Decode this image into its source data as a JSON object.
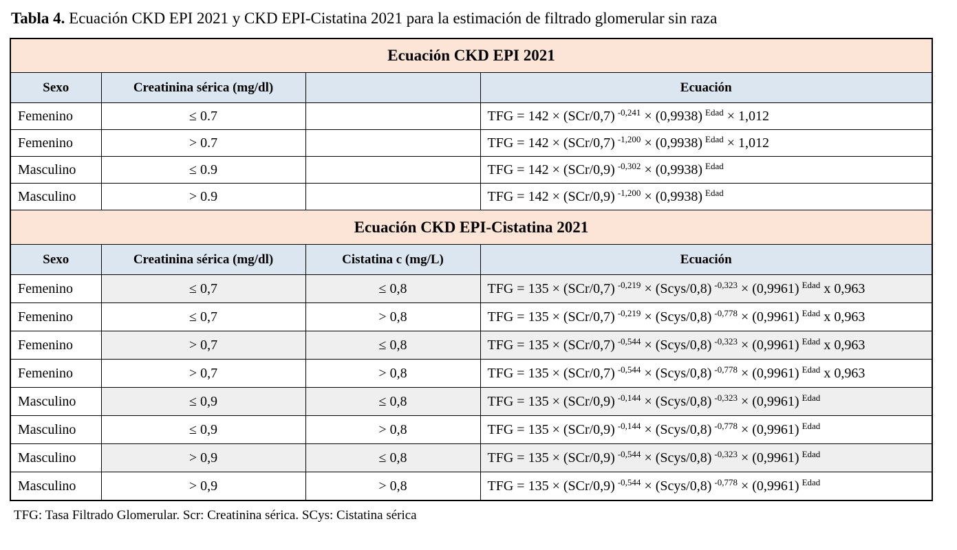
{
  "page": {
    "title_label": "Tabla 4.",
    "title_text": " Ecuación CKD EPI 2021 y CKD EPI-Cistatina 2021 para la estimación de filtrado glomerular sin raza",
    "footnote": "TFG: Tasa Filtrado Glomerular. Scr: Creatinina sérica. SCys: Cistatina sérica"
  },
  "colors": {
    "section_header_bg": "#FCE4D6",
    "column_header_bg": "#DCE6F1",
    "shaded_row_bg": "#EFEFEF",
    "border": "#000000"
  },
  "section1": {
    "header": "Ecuación CKD EPI 2021",
    "columns": [
      "Sexo",
      "Creatinina sérica (mg/dl)",
      "",
      "Ecuación"
    ],
    "rows": [
      {
        "sexo": "Femenino",
        "creatinina": "≤ 0.7",
        "cistatina": "",
        "eq": [
          {
            "t": "TFG = 142 × (SCr/0,7)"
          },
          {
            "s": "-0,241"
          },
          {
            "t": " × (0,9938)"
          },
          {
            "s": "Edad"
          },
          {
            "t": " × 1,012"
          }
        ]
      },
      {
        "sexo": "Femenino",
        "creatinina": "> 0.7",
        "cistatina": "",
        "eq": [
          {
            "t": "TFG = 142 × (SCr/0,7)"
          },
          {
            "s": "-1,200"
          },
          {
            "t": " × (0,9938)"
          },
          {
            "s": "Edad"
          },
          {
            "t": " × 1,012"
          }
        ]
      },
      {
        "sexo": "Masculino",
        "creatinina": "≤ 0.9",
        "cistatina": "",
        "eq": [
          {
            "t": "TFG = 142 × (SCr/0,9)"
          },
          {
            "s": "-0,302"
          },
          {
            "t": " × (0,9938)"
          },
          {
            "s": "Edad"
          }
        ]
      },
      {
        "sexo": "Masculino",
        "creatinina": "> 0.9",
        "cistatina": "",
        "eq": [
          {
            "t": "TFG = 142 × (SCr/0,9)"
          },
          {
            "s": "-1,200"
          },
          {
            "t": " × (0,9938)"
          },
          {
            "s": "Edad"
          }
        ]
      }
    ]
  },
  "section2": {
    "header": "Ecuación CKD EPI-Cistatina 2021",
    "columns": [
      "Sexo",
      "Creatinina sérica (mg/dl)",
      "Cistatina c (mg/L)",
      "Ecuación"
    ],
    "rows": [
      {
        "sexo": "Femenino",
        "creatinina": "≤ 0,7",
        "cistatina": "≤ 0,8",
        "eq": [
          {
            "t": "TFG = 135 × (SCr/0,7)"
          },
          {
            "s": "-0,219"
          },
          {
            "t": " × (Scys/0,8)"
          },
          {
            "s": "-0,323"
          },
          {
            "t": " × (0,9961)"
          },
          {
            "s": "Edad"
          },
          {
            "t": " x 0,963"
          }
        ]
      },
      {
        "sexo": "Femenino",
        "creatinina": "≤ 0,7",
        "cistatina": "> 0,8",
        "eq": [
          {
            "t": "TFG = 135 × (SCr/0,7)"
          },
          {
            "s": "-0,219"
          },
          {
            "t": " × (Scys/0,8)"
          },
          {
            "s": "-0,778"
          },
          {
            "t": " × (0,9961)"
          },
          {
            "s": "Edad"
          },
          {
            "t": " x 0,963"
          }
        ]
      },
      {
        "sexo": "Femenino",
        "creatinina": "> 0,7",
        "cistatina": "≤ 0,8",
        "eq": [
          {
            "t": "TFG = 135 × (SCr/0,7)"
          },
          {
            "s": "-0,544"
          },
          {
            "t": " × (Scys/0,8)"
          },
          {
            "s": "-0,323"
          },
          {
            "t": " × (0,9961)"
          },
          {
            "s": "Edad"
          },
          {
            "t": " x 0,963"
          }
        ]
      },
      {
        "sexo": "Femenino",
        "creatinina": "> 0,7",
        "cistatina": "> 0,8",
        "eq": [
          {
            "t": "TFG = 135 × (SCr/0,7)"
          },
          {
            "s": "-0,544"
          },
          {
            "t": " × (Scys/0,8)"
          },
          {
            "s": "-0,778"
          },
          {
            "t": " × (0,9961)"
          },
          {
            "s": "Edad"
          },
          {
            "t": " x 0,963"
          }
        ]
      },
      {
        "sexo": "Masculino",
        "creatinina": "≤ 0,9",
        "cistatina": "≤ 0,8",
        "eq": [
          {
            "t": "TFG = 135 × (SCr/0,9)"
          },
          {
            "s": "-0,144"
          },
          {
            "t": " × (Scys/0,8)"
          },
          {
            "s": "-0,323"
          },
          {
            "t": " × (0,9961)"
          },
          {
            "s": "Edad"
          }
        ]
      },
      {
        "sexo": "Masculino",
        "creatinina": "≤ 0,9",
        "cistatina": "> 0,8",
        "eq": [
          {
            "t": "TFG = 135 × (SCr/0,9)"
          },
          {
            "s": "-0,144"
          },
          {
            "t": " × (Scys/0,8)"
          },
          {
            "s": "-0,778"
          },
          {
            "t": " × (0,9961)"
          },
          {
            "s": "Edad"
          }
        ]
      },
      {
        "sexo": "Masculino",
        "creatinina": "> 0,9",
        "cistatina": "≤ 0,8",
        "eq": [
          {
            "t": "TFG = 135 × (SCr/0,9)"
          },
          {
            "s": "-0,544"
          },
          {
            "t": " × (Scys/0,8)"
          },
          {
            "s": "-0,323"
          },
          {
            "t": " × (0,9961)"
          },
          {
            "s": "Edad"
          }
        ]
      },
      {
        "sexo": "Masculino",
        "creatinina": "> 0,9",
        "cistatina": "> 0,8",
        "eq": [
          {
            "t": "TFG = 135 × (SCr/0,9)"
          },
          {
            "s": "-0,544"
          },
          {
            "t": " × (Scys/0,8)"
          },
          {
            "s": "-0,778"
          },
          {
            "t": " × (0,9961)"
          },
          {
            "s": "Edad"
          }
        ]
      }
    ]
  }
}
